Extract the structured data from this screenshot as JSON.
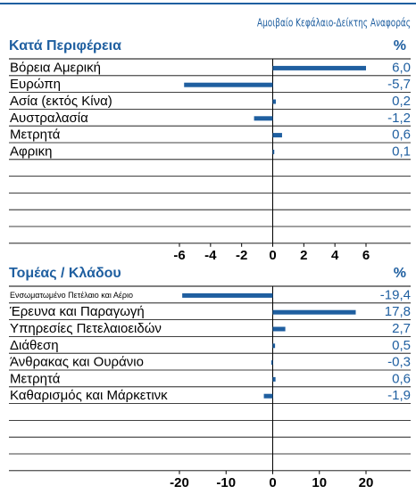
{
  "chart_data": [
    {
      "type": "bar",
      "orientation": "horizontal",
      "subtitle": "Αμοιβαίο Κεφάλαιο-Δείκτης Αναφοράς",
      "title": "Κατά Περιφέρεια",
      "value_header": "%",
      "color": "#1f5fa0",
      "categories": [
        "Βόρεια Αμερική",
        "Ευρώπη",
        "Ασία (εκτός Κίνα)",
        "Αυστραλασία",
        "Μετρητά",
        "Αφρικη"
      ],
      "values": [
        6.0,
        -5.7,
        0.2,
        -1.2,
        0.6,
        0.1
      ],
      "value_labels": [
        "6,0",
        "-5,7",
        "0,2",
        "-1,2",
        "0,6",
        "0,1"
      ],
      "xlim": [
        -6,
        6
      ],
      "xticks": [
        -6,
        -4,
        -2,
        0,
        2,
        4,
        6
      ]
    },
    {
      "type": "bar",
      "orientation": "horizontal",
      "title": "Τομέας / Κλάδου",
      "value_header": "%",
      "color": "#1f5fa0",
      "categories": [
        "Ενσωματωμένο Πετέλαιο και Αέριο",
        "Έρευνα και Παραγωγή",
        "Υπηρεσίες Πετελαιοειδών",
        "Διάθεση",
        "Άνθρακας και Ουράνιο",
        "Μετρητά",
        "Καθαρισμός και Μάρκετινκ"
      ],
      "values": [
        -19.4,
        17.8,
        2.7,
        0.5,
        -0.3,
        0.6,
        -1.9
      ],
      "value_labels": [
        "-19,4",
        "17,8",
        "2,7",
        "0,5",
        "-0,3",
        "0,6",
        "-1,9"
      ],
      "xlim": [
        -20,
        20
      ],
      "xticks": [
        -20,
        -10,
        0,
        10,
        20
      ]
    }
  ]
}
